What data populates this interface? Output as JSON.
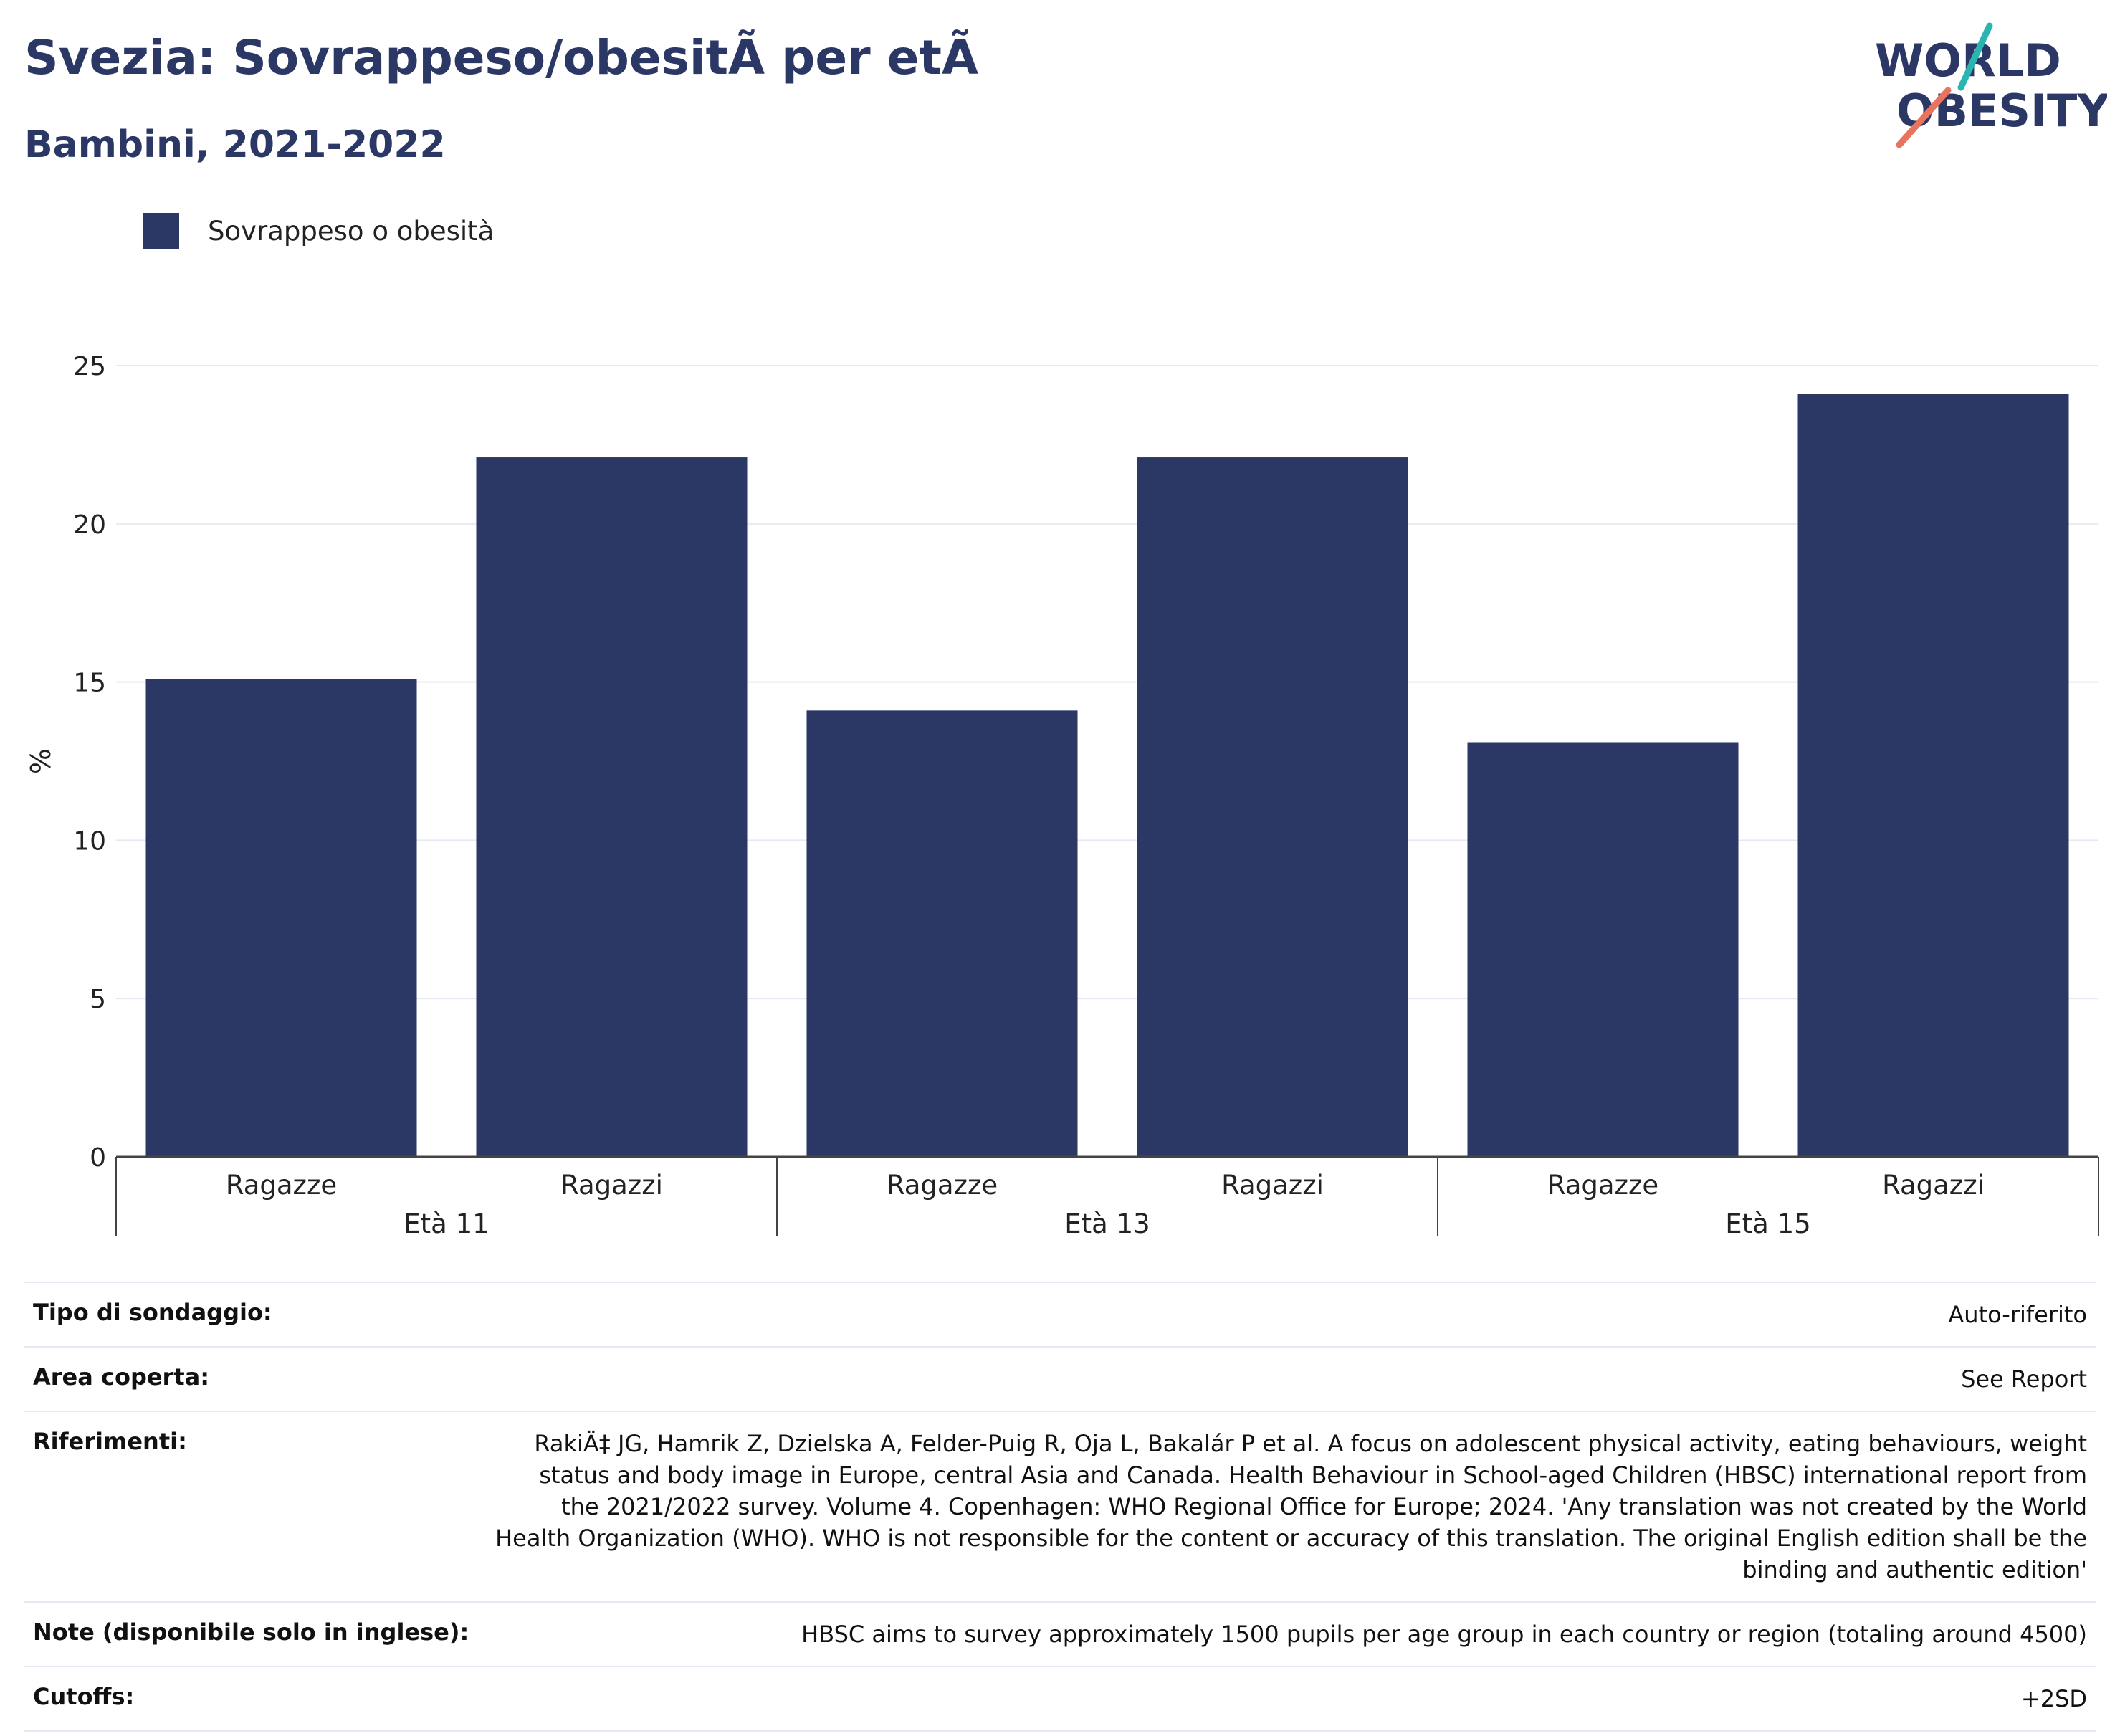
{
  "header": {
    "title": "Svezia: Sovrappeso/obesitÃ  per etÃ",
    "subtitle": "Bambini, 2021-2022"
  },
  "logo": {
    "line1": "WORLD",
    "line2": "OBESITY",
    "accent_teal": "#2bb5b0",
    "accent_coral": "#e8735f"
  },
  "colors": {
    "bar": "#2b3765",
    "grid": "#e6e9f2",
    "axis": "#444444"
  },
  "chart_data": {
    "type": "bar",
    "legend": [
      "Sovrappeso o obesità"
    ],
    "legend_position": "top-left",
    "ylabel": "%",
    "ylim": [
      0,
      25
    ],
    "yticks": [
      0,
      5,
      10,
      15,
      20,
      25
    ],
    "grid": true,
    "groups": [
      {
        "label": "Età 11",
        "bars": [
          {
            "label": "Ragazze",
            "value": 15.1
          },
          {
            "label": "Ragazzi",
            "value": 22.1
          }
        ]
      },
      {
        "label": "Età 13",
        "bars": [
          {
            "label": "Ragazze",
            "value": 14.1
          },
          {
            "label": "Ragazzi",
            "value": 22.1
          }
        ]
      },
      {
        "label": "Età 15",
        "bars": [
          {
            "label": "Ragazze",
            "value": 13.1
          },
          {
            "label": "Ragazzi",
            "value": 24.1
          }
        ]
      }
    ]
  },
  "meta": {
    "survey_type": {
      "label": "Tipo di sondaggio:",
      "value": "Auto-riferito"
    },
    "area": {
      "label": "Area coperta:",
      "value": "See Report"
    },
    "references": {
      "label": "Riferimenti:",
      "value": "RakiÄ‡ JG, Hamrik Z, Dzielska A, Felder-Puig R, Oja L, Bakalár P et al. A focus on adolescent physical activity, eating behaviours, weight status and body image in Europe, central Asia and Canada. Health Behaviour in School-aged Children (HBSC) international report from the 2021/2022 survey. Volume 4. Copenhagen: WHO Regional Office for Europe; 2024. 'Any translation was not created by the World Health Organization (WHO). WHO is not responsible for the content or accuracy of this translation. The original English edition shall be the binding and authentic edition'"
    },
    "notes": {
      "label": "Note (disponibile solo in inglese):",
      "value": "HBSC aims to survey approximately 1500 pupils per age group in each country or region (totaling around 4500)"
    },
    "cutoffs": {
      "label": "Cutoffs:",
      "value": "+2SD"
    }
  }
}
